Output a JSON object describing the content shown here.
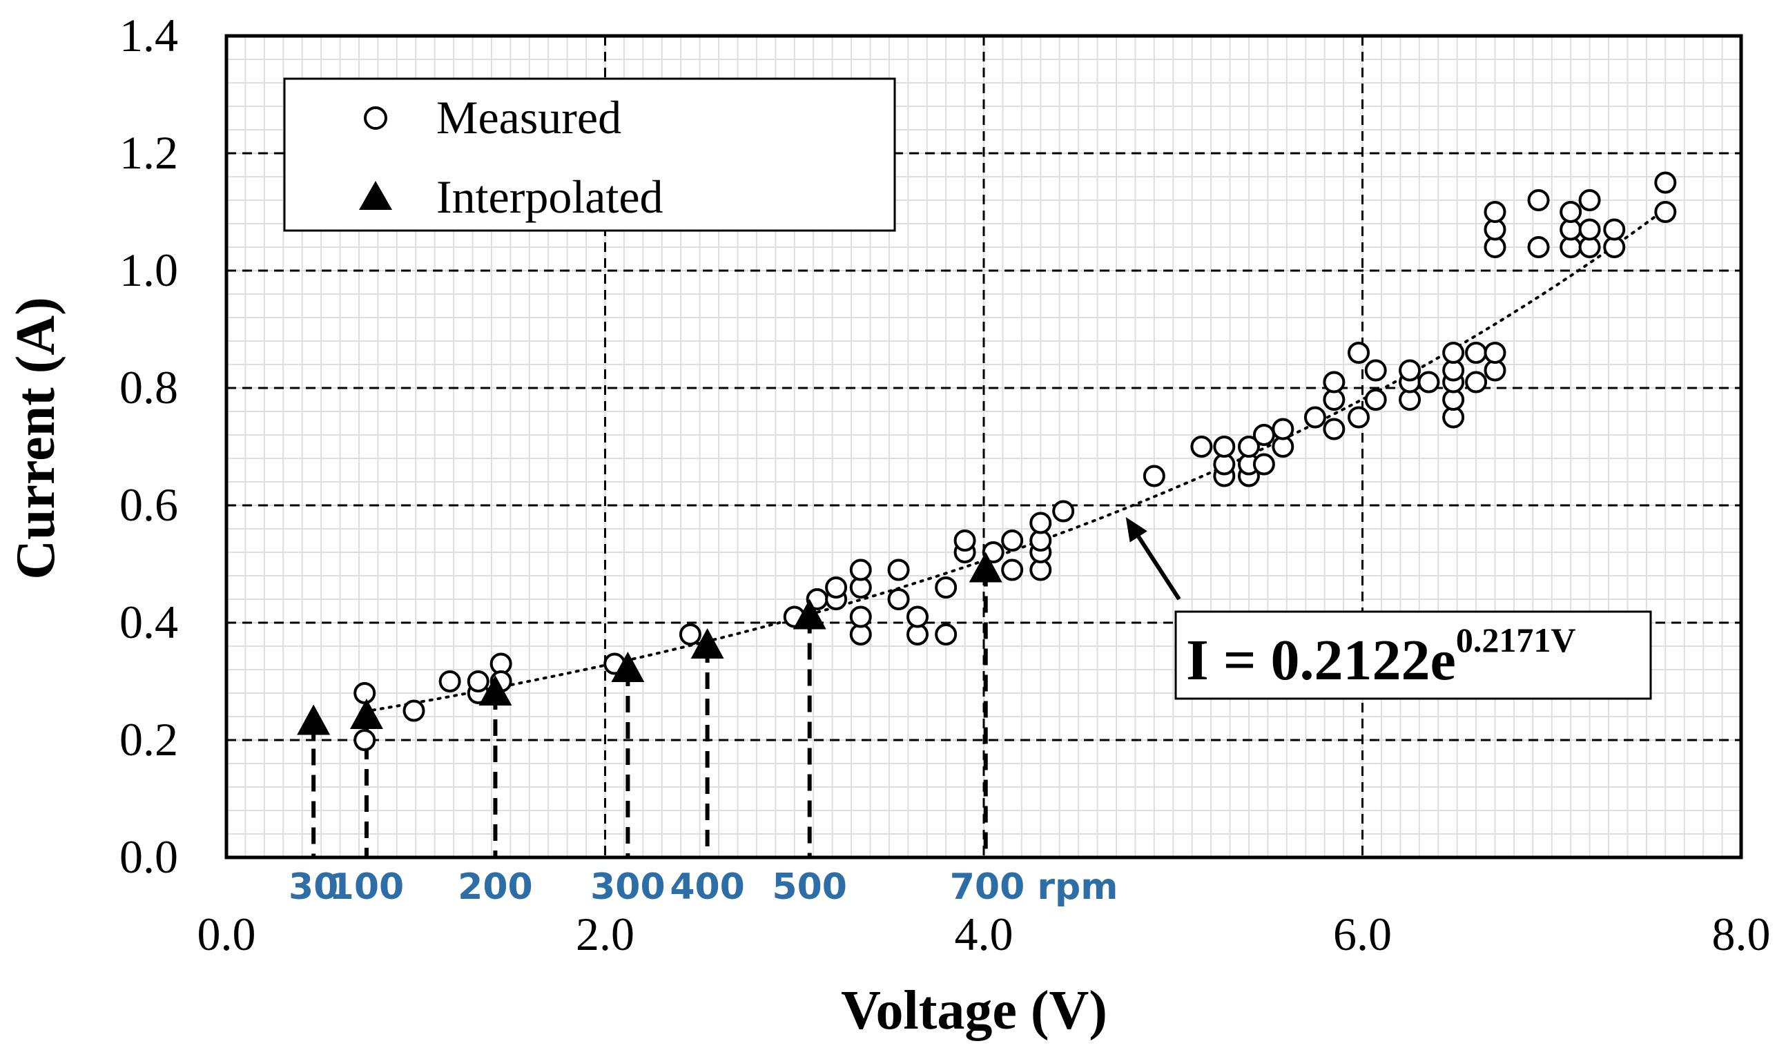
{
  "chart_data": {
    "type": "scatter",
    "xlabel": "Voltage (V)",
    "ylabel": "Current (A)",
    "xlim": [
      0,
      8
    ],
    "ylim": [
      0,
      1.4
    ],
    "x_ticks": [
      "0.0",
      "2.0",
      "4.0",
      "6.0",
      "8.0"
    ],
    "y_ticks": [
      "0.0",
      "0.2",
      "0.4",
      "0.6",
      "0.8",
      "1.0",
      "1.2",
      "1.4"
    ],
    "x_tick_values": [
      0,
      2,
      4,
      6,
      8
    ],
    "y_tick_values": [
      0,
      0.2,
      0.4,
      0.6,
      0.8,
      1.0,
      1.2,
      1.4
    ],
    "grid": true,
    "legend": {
      "position": "top-left",
      "entries": [
        {
          "label": "Measured",
          "marker": "open-circle"
        },
        {
          "label": "Interpolated",
          "marker": "filled-triangle"
        }
      ]
    },
    "series": [
      {
        "name": "Measured",
        "points": [
          [
            0.73,
            0.28
          ],
          [
            0.73,
            0.2
          ],
          [
            0.99,
            0.25
          ],
          [
            1.18,
            0.3
          ],
          [
            1.33,
            0.28
          ],
          [
            1.33,
            0.3
          ],
          [
            1.45,
            0.33
          ],
          [
            1.45,
            0.3
          ],
          [
            2.05,
            0.33
          ],
          [
            2.45,
            0.38
          ],
          [
            3.0,
            0.41
          ],
          [
            3.12,
            0.44
          ],
          [
            3.22,
            0.44
          ],
          [
            3.22,
            0.46
          ],
          [
            3.35,
            0.38
          ],
          [
            3.35,
            0.41
          ],
          [
            3.35,
            0.46
          ],
          [
            3.35,
            0.49
          ],
          [
            3.55,
            0.44
          ],
          [
            3.55,
            0.49
          ],
          [
            3.65,
            0.38
          ],
          [
            3.65,
            0.41
          ],
          [
            3.8,
            0.38
          ],
          [
            3.8,
            0.46
          ],
          [
            3.9,
            0.52
          ],
          [
            3.9,
            0.54
          ],
          [
            4.05,
            0.52
          ],
          [
            4.15,
            0.49
          ],
          [
            4.15,
            0.54
          ],
          [
            4.3,
            0.49
          ],
          [
            4.3,
            0.52
          ],
          [
            4.3,
            0.54
          ],
          [
            4.3,
            0.57
          ],
          [
            4.42,
            0.59
          ],
          [
            4.9,
            0.65
          ],
          [
            5.15,
            0.7
          ],
          [
            5.27,
            0.65
          ],
          [
            5.27,
            0.67
          ],
          [
            5.27,
            0.7
          ],
          [
            5.4,
            0.65
          ],
          [
            5.4,
            0.67
          ],
          [
            5.4,
            0.7
          ],
          [
            5.48,
            0.67
          ],
          [
            5.48,
            0.72
          ],
          [
            5.58,
            0.7
          ],
          [
            5.58,
            0.73
          ],
          [
            5.75,
            0.75
          ],
          [
            5.85,
            0.73
          ],
          [
            5.85,
            0.78
          ],
          [
            5.85,
            0.81
          ],
          [
            5.98,
            0.75
          ],
          [
            5.98,
            0.86
          ],
          [
            6.07,
            0.78
          ],
          [
            6.07,
            0.83
          ],
          [
            6.25,
            0.78
          ],
          [
            6.25,
            0.81
          ],
          [
            6.25,
            0.83
          ],
          [
            6.35,
            0.81
          ],
          [
            6.48,
            0.75
          ],
          [
            6.48,
            0.78
          ],
          [
            6.48,
            0.81
          ],
          [
            6.48,
            0.83
          ],
          [
            6.48,
            0.86
          ],
          [
            6.6,
            0.81
          ],
          [
            6.6,
            0.86
          ],
          [
            6.7,
            0.83
          ],
          [
            6.7,
            0.86
          ],
          [
            6.7,
            1.04
          ],
          [
            6.7,
            1.07
          ],
          [
            6.7,
            1.1
          ],
          [
            6.93,
            1.04
          ],
          [
            6.93,
            1.12
          ],
          [
            7.1,
            1.04
          ],
          [
            7.1,
            1.07
          ],
          [
            7.1,
            1.1
          ],
          [
            7.2,
            1.04
          ],
          [
            7.2,
            1.07
          ],
          [
            7.2,
            1.12
          ],
          [
            7.33,
            1.04
          ],
          [
            7.33,
            1.07
          ],
          [
            7.6,
            1.1
          ],
          [
            7.6,
            1.15
          ]
        ]
      },
      {
        "name": "Interpolated",
        "points": [
          [
            0.46,
            0.23
          ],
          [
            0.74,
            0.24
          ],
          [
            1.42,
            0.28
          ],
          [
            2.12,
            0.32
          ],
          [
            2.54,
            0.36
          ],
          [
            3.08,
            0.41
          ],
          [
            4.01,
            0.49
          ]
        ]
      }
    ],
    "trendline": {
      "type": "exponential",
      "a": 0.2122,
      "b": 0.2171,
      "x_range": [
        0.73,
        7.6
      ],
      "style": "dotted"
    },
    "rpm_markers": [
      {
        "label": "30",
        "x": 0.46,
        "y": 0.23
      },
      {
        "label": "100",
        "x": 0.74,
        "y": 0.24
      },
      {
        "label": "200",
        "x": 1.42,
        "y": 0.28
      },
      {
        "label": "300",
        "x": 2.12,
        "y": 0.32
      },
      {
        "label": "400",
        "x": 2.54,
        "y": 0.36
      },
      {
        "label": "500",
        "x": 3.08,
        "y": 0.41
      },
      {
        "label": "700 rpm",
        "x": 4.01,
        "y": 0.49
      }
    ],
    "rpm_label_color": "#2e6ea6",
    "annotation": {
      "base": "I = 0.2122e",
      "exponent": "0.2171V",
      "arrow_target": [
        4.75,
        0.58
      ]
    }
  }
}
